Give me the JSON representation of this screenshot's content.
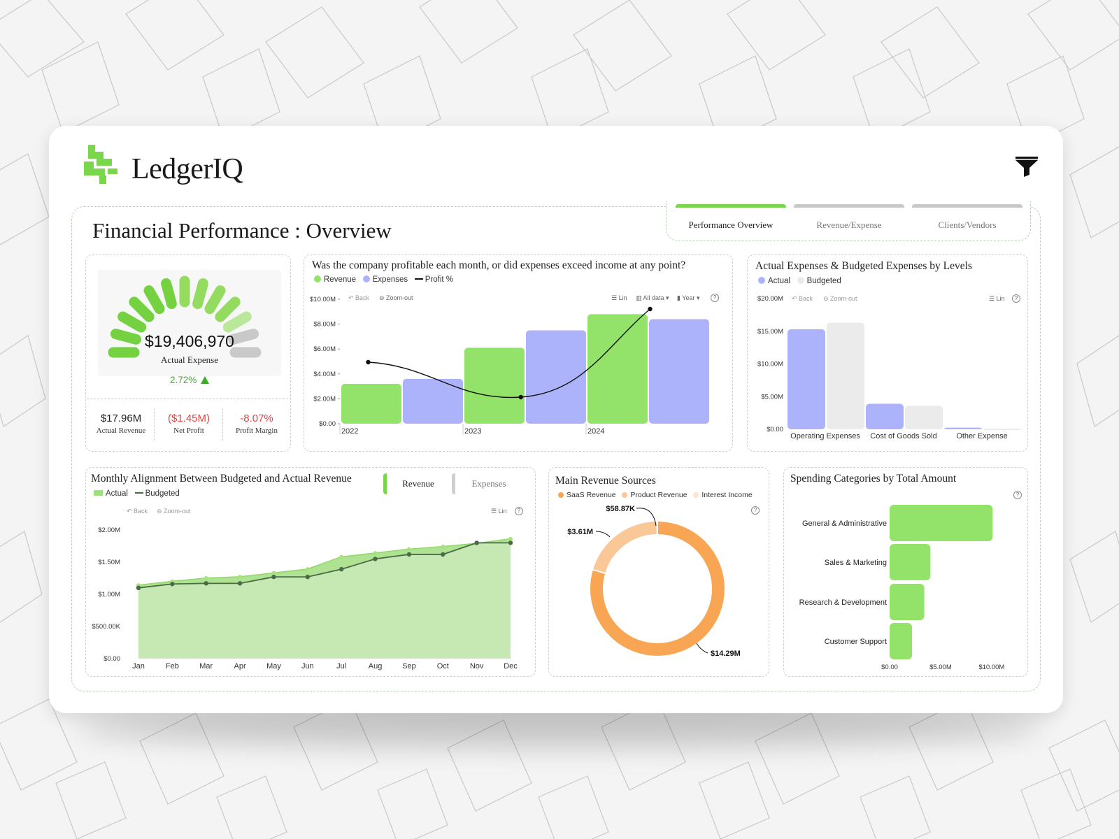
{
  "brand": {
    "name": "LedgerIQ"
  },
  "page_title": "Financial Performance : Overview",
  "tabs": [
    {
      "label": "Performance Overview",
      "active": true
    },
    {
      "label": "Revenue/Expense",
      "active": false
    },
    {
      "label": "Clients/Vendors",
      "active": false
    }
  ],
  "colors": {
    "green": "#93e26a",
    "green_dark": "#43b32d",
    "purple": "#adb3fa",
    "grey": "#ebebeb",
    "orange": "#f8a653",
    "peach": "#fac896",
    "cream": "#fbe4d0",
    "negative": "#e04646",
    "line": "#4a6b44"
  },
  "icons": {
    "filter": "filter-icon",
    "logo": "logo-icon",
    "trend": "triangle-up-icon"
  },
  "gauge": {
    "value": "$19,406,970",
    "label": "Actual Expense",
    "change": "2.72%",
    "filled_fraction": 0.85
  },
  "kpis": [
    {
      "value": "$17.96M",
      "label": "Actual Revenue",
      "negative": false
    },
    {
      "value": "($1.45M)",
      "label": "Net Profit",
      "negative": true
    },
    {
      "value": "-8.07%",
      "label": "Profit Margin",
      "negative": true
    }
  ],
  "toolbar": {
    "back": "Back",
    "zoom_out": "Zoom-out",
    "lin": "Lin",
    "all_data": "All data",
    "year": "Year",
    "help": "?"
  },
  "profit_chart": {
    "title": "Was the company profitable each month, or did expenses exceed income at any point?",
    "legend": [
      "Revenue",
      "Expenses",
      "Profit %"
    ],
    "chart_data": {
      "type": "bar",
      "categories": [
        "2022",
        "2023",
        "2024"
      ],
      "series": [
        {
          "name": "Revenue",
          "values": [
            3.2,
            6.1,
            8.8
          ]
        },
        {
          "name": "Expenses",
          "values": [
            3.6,
            7.5,
            8.4
          ]
        },
        {
          "name": "Profit %",
          "type": "line"
        }
      ],
      "y_ticks": [
        "$0.00",
        "$2.00M",
        "$4.00M",
        "$6.00M",
        "$8.00M",
        "$10.00M"
      ],
      "ylim": [
        0,
        10
      ]
    }
  },
  "levels_chart": {
    "title": "Actual Expenses & Budgeted Expenses by Levels",
    "legend": [
      "Actual",
      "Budgeted"
    ],
    "chart_data": {
      "type": "bar",
      "categories": [
        "Operating Expenses",
        "Cost of Goods Sold",
        "Other Expense"
      ],
      "series": [
        {
          "name": "Actual",
          "values": [
            15.3,
            3.9,
            0.25
          ]
        },
        {
          "name": "Budgeted",
          "values": [
            16.3,
            3.6,
            0.1
          ]
        }
      ],
      "y_ticks": [
        "$0.00",
        "$5.00M",
        "$10.00M",
        "$15.00M",
        "$20.00M"
      ],
      "ylim": [
        0,
        20
      ]
    }
  },
  "monthly_chart": {
    "title": "Monthly Alignment Between Budgeted and Actual Revenue",
    "toggle": [
      "Revenue",
      "Expenses"
    ],
    "legend": [
      "Actual",
      "Budgeted"
    ],
    "chart_data": {
      "type": "area",
      "categories": [
        "Jan",
        "Feb",
        "Mar",
        "Apr",
        "May",
        "Jun",
        "Jul",
        "Aug",
        "Sep",
        "Oct",
        "Nov",
        "Dec"
      ],
      "series": [
        {
          "name": "Actual",
          "values": [
            1.14,
            1.2,
            1.25,
            1.27,
            1.33,
            1.39,
            1.58,
            1.64,
            1.7,
            1.74,
            1.79,
            1.86
          ]
        },
        {
          "name": "Budgeted",
          "values": [
            1.1,
            1.16,
            1.17,
            1.17,
            1.27,
            1.27,
            1.39,
            1.55,
            1.62,
            1.62,
            1.8,
            1.8
          ]
        }
      ],
      "y_ticks": [
        "$0.00",
        "$500.00K",
        "$1.00M",
        "$1.50M",
        "$2.00M"
      ],
      "ylim": [
        0,
        2
      ]
    }
  },
  "sources_chart": {
    "title": "Main Revenue Sources",
    "chart_data": {
      "type": "pie",
      "labels": [
        "SaaS Revenue",
        "Product Revenue",
        "Interest Income"
      ],
      "values": [
        14.29,
        3.61,
        0.05887
      ],
      "data_labels": [
        "$14.29M",
        "$3.61M",
        "$58.87K"
      ]
    }
  },
  "spending_chart": {
    "title": "Spending Categories by Total Amount",
    "chart_data": {
      "type": "bar",
      "categories": [
        "General & Administrative",
        "Sales & Marketing",
        "Research & Development",
        "Customer Support"
      ],
      "values": [
        10.1,
        4.0,
        3.4,
        2.2
      ],
      "x_ticks": [
        "$0.00",
        "$5.00M",
        "$10.00M"
      ],
      "xlim": [
        0,
        12
      ]
    }
  }
}
